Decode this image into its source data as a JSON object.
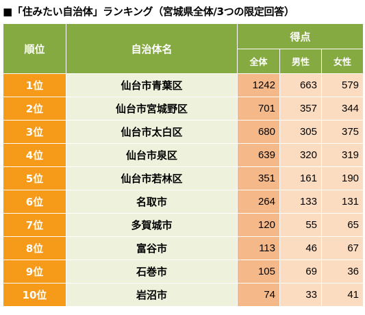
{
  "title": "■「住みたい自治体」ランキング（宮城県全体/3つの限定回答）",
  "header": {
    "rank_label": "順位",
    "name_label": "自治体名",
    "score_label": "得点",
    "all_label": "全体",
    "male_label": "男性",
    "female_label": "女性"
  },
  "rows": [
    {
      "rank": "1位",
      "name": "仙台市青葉区",
      "all": "1242",
      "male": "663",
      "female": "579"
    },
    {
      "rank": "2位",
      "name": "仙台市宮城野区",
      "all": "701",
      "male": "357",
      "female": "344"
    },
    {
      "rank": "3位",
      "name": "仙台市太白区",
      "all": "680",
      "male": "305",
      "female": "375"
    },
    {
      "rank": "4位",
      "name": "仙台市泉区",
      "all": "639",
      "male": "320",
      "female": "319"
    },
    {
      "rank": "5位",
      "name": "仙台市若林区",
      "all": "351",
      "male": "161",
      "female": "190"
    },
    {
      "rank": "6位",
      "name": "名取市",
      "all": "264",
      "male": "133",
      "female": "131"
    },
    {
      "rank": "7位",
      "name": "多賀城市",
      "all": "120",
      "male": "55",
      "female": "65"
    },
    {
      "rank": "8位",
      "name": "富谷市",
      "all": "113",
      "male": "46",
      "female": "67"
    },
    {
      "rank": "9位",
      "name": "石巻市",
      "all": "105",
      "male": "69",
      "female": "36"
    },
    {
      "rank": "10位",
      "name": "岩沼市",
      "all": "74",
      "male": "33",
      "female": "41"
    }
  ],
  "colors": {
    "header_green": "#86aa42",
    "rank_orange": "#f59a19",
    "name_bg": "#eef2dc",
    "all_bg": "#f4b889",
    "gender_bg": "#fbdcc0"
  }
}
